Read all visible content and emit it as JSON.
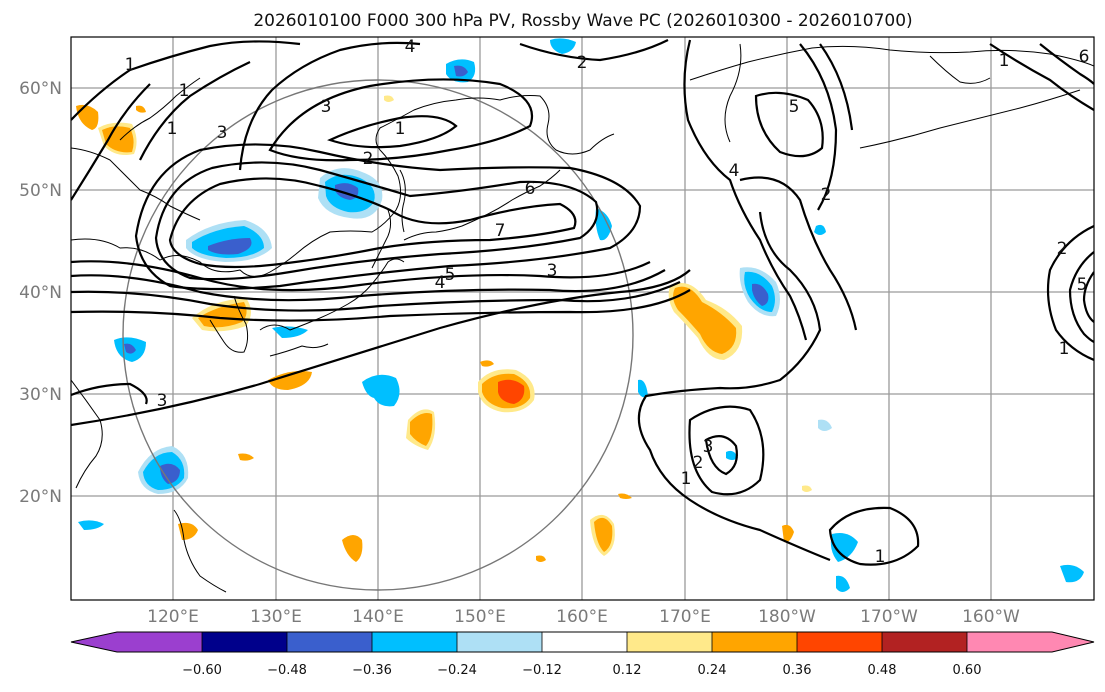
{
  "title": "2026010100 F000 300 hPa PV, Rossby Wave PC (2026010300 - 2026010700)",
  "lat_labels": [
    "60°N",
    "50°N",
    "40°N",
    "30°N",
    "20°N"
  ],
  "lon_labels": [
    "120°E",
    "130°E",
    "140°E",
    "150°E",
    "160°E",
    "170°E",
    "180°W",
    "170°W",
    "160°W"
  ],
  "colorbar": {
    "ticks": [
      "−0.60",
      "−0.48",
      "−0.36",
      "−0.24",
      "−0.12",
      "0.12",
      "0.24",
      "0.36",
      "0.48",
      "0.60"
    ],
    "colors": [
      "#9b3fcf",
      "#00008b",
      "#3a5fcd",
      "#00bfff",
      "#aee0f5",
      "#ffffff",
      "#ffe98a",
      "#ffa500",
      "#ff4500",
      "#b22222",
      "#ff88b2"
    ]
  },
  "contour_labels": [
    "1",
    "1",
    "1",
    "1",
    "1",
    "1",
    "1",
    "1",
    "2",
    "2",
    "2",
    "2",
    "2",
    "3",
    "3",
    "3",
    "3",
    "3",
    "4",
    "4",
    "4",
    "5",
    "5",
    "5",
    "6",
    "6",
    "7"
  ]
}
